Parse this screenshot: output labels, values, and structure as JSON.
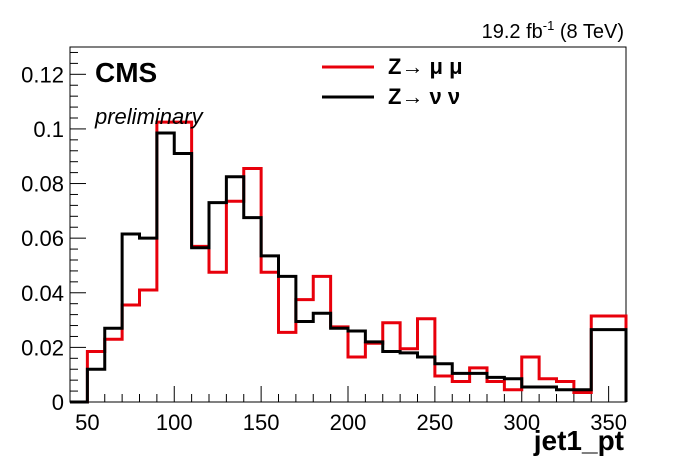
{
  "chart_data": {
    "type": "histogram",
    "title": "",
    "xlabel": "jet1_pt",
    "ylabel": "",
    "xlim": [
      40,
      360
    ],
    "ylim": [
      0,
      0.13
    ],
    "bin_edges": [
      40,
      50,
      60,
      70,
      80,
      90,
      100,
      110,
      120,
      130,
      140,
      150,
      160,
      170,
      180,
      190,
      200,
      210,
      220,
      230,
      240,
      250,
      260,
      270,
      280,
      290,
      300,
      310,
      320,
      330,
      340,
      350,
      360
    ],
    "x_ticks": [
      50,
      100,
      150,
      200,
      250,
      300,
      350
    ],
    "x_tick_labels": [
      "50",
      "100",
      "150",
      "200",
      "250",
      "300",
      "350"
    ],
    "y_ticks": [
      0,
      0.02,
      0.04,
      0.06,
      0.08,
      0.1,
      0.12
    ],
    "y_tick_labels": [
      "0",
      "0.02",
      "0.04",
      "0.06",
      "0.08",
      "0.1",
      "0.12"
    ],
    "series": [
      {
        "name": "Z→ μ μ",
        "color": "#e8000b",
        "values": [
          0,
          0.0185,
          0.023,
          0.0355,
          0.041,
          0.1025,
          0.1025,
          0.057,
          0.0475,
          0.0735,
          0.0855,
          0.0475,
          0.0255,
          0.0375,
          0.046,
          0.0275,
          0.0165,
          0.0215,
          0.029,
          0.0195,
          0.0305,
          0.0095,
          0.0075,
          0.0125,
          0.0075,
          0.0045,
          0.0165,
          0.0085,
          0.0075,
          0.0035,
          0.0315,
          0.0315
        ]
      },
      {
        "name": "Z→ ν ν",
        "color": "#000000",
        "values": [
          0,
          0.012,
          0.027,
          0.0615,
          0.06,
          0.0985,
          0.091,
          0.0565,
          0.073,
          0.0825,
          0.0675,
          0.0535,
          0.046,
          0.0295,
          0.0325,
          0.027,
          0.026,
          0.022,
          0.0185,
          0.018,
          0.0165,
          0.014,
          0.0105,
          0.0105,
          0.009,
          0.0085,
          0.0055,
          0.0055,
          0.0045,
          0.0045,
          0.0265,
          0.0265
        ]
      }
    ]
  },
  "header": {
    "lumi_main": "19.2 fb",
    "lumi_sup": "-1",
    "lumi_energy": " (8 TeV)"
  },
  "labels": {
    "experiment": "CMS",
    "status": "preliminary"
  }
}
